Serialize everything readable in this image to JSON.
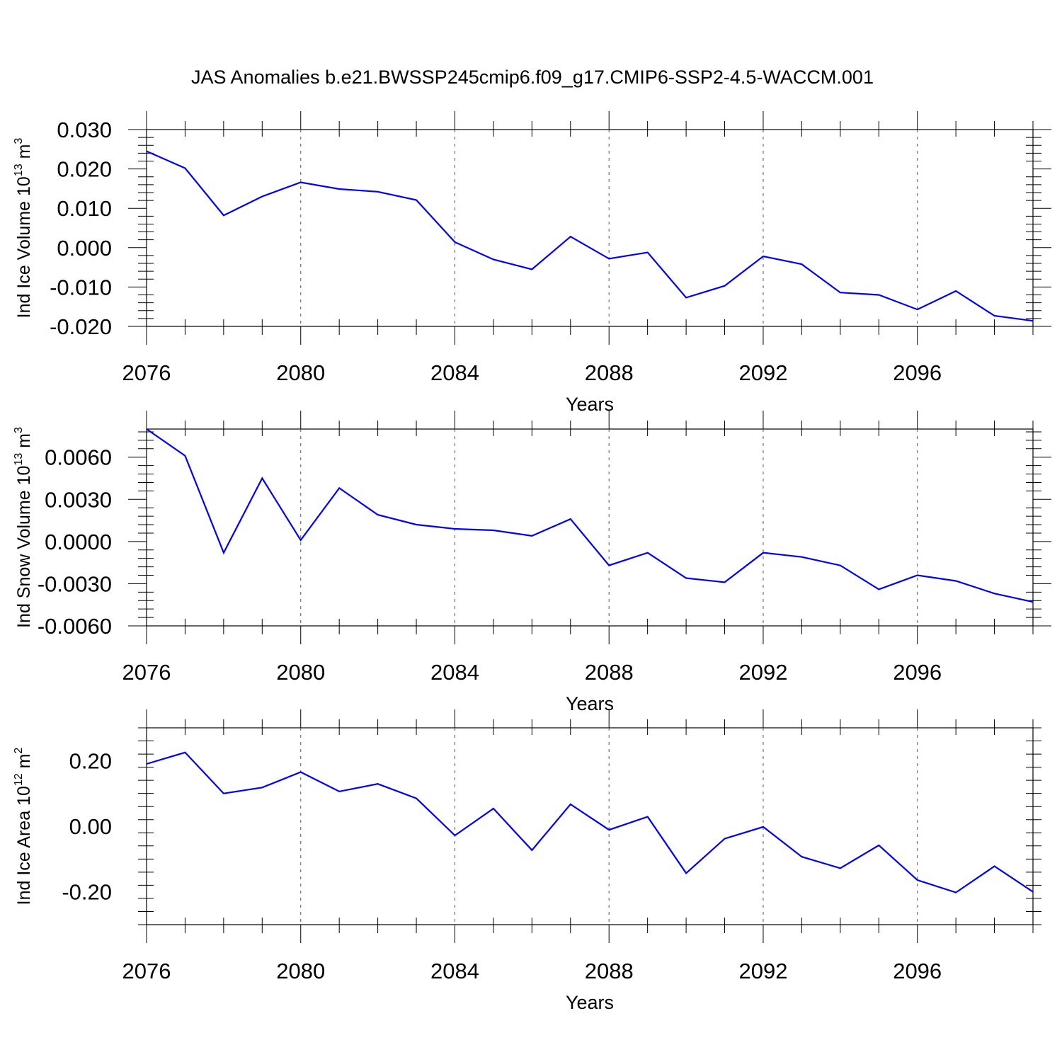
{
  "title": "JAS Anomalies b.e21.BWSSP245cmip6.f09_g17.CMIP6-SSP2-4.5-WACCM.001",
  "line_color": "#0000ff",
  "chart_data": [
    {
      "type": "line",
      "ylabel": {
        "text": "Ind Ice Volume 10",
        "sup": "13",
        "unit": " m",
        "unit_sup": "3"
      },
      "xlabel": "Years",
      "xlim": [
        2076,
        2099
      ],
      "ylim": [
        -0.02,
        0.03
      ],
      "xticks": [
        2076,
        2080,
        2084,
        2088,
        2092,
        2096
      ],
      "yticks": [
        0.03,
        0.02,
        0.01,
        0.0,
        -0.01,
        -0.02
      ],
      "ytick_labels": [
        "0.030",
        "0.020",
        "0.010",
        "0.000",
        "-0.010",
        "-0.020"
      ],
      "x": [
        2076,
        2077,
        2078,
        2079,
        2080,
        2081,
        2082,
        2083,
        2084,
        2085,
        2086,
        2087,
        2088,
        2089,
        2090,
        2091,
        2092,
        2093,
        2094,
        2095,
        2096,
        2097,
        2098,
        2099
      ],
      "values": [
        0.0245,
        0.0202,
        0.0082,
        0.013,
        0.0166,
        0.0149,
        0.0142,
        0.0121,
        0.0014,
        -0.003,
        -0.0055,
        0.0028,
        -0.0028,
        -0.0012,
        -0.0127,
        -0.0097,
        -0.0022,
        -0.0042,
        -0.0114,
        -0.012,
        -0.0157,
        -0.011,
        -0.0173,
        -0.0186
      ],
      "grid": "dashed vertical at major x ticks"
    },
    {
      "type": "line",
      "ylabel": {
        "text": "Ind Snow Volume 10",
        "sup": "13",
        "unit": " m",
        "unit_sup": "3"
      },
      "xlabel": "Years",
      "xlim": [
        2076,
        2099
      ],
      "ylim": [
        -0.006,
        0.008
      ],
      "xticks": [
        2076,
        2080,
        2084,
        2088,
        2092,
        2096
      ],
      "yticks": [
        0.006,
        0.003,
        0.0,
        -0.003,
        -0.006
      ],
      "ytick_labels": [
        "0.0060",
        "0.0030",
        "0.0000",
        "-0.0030",
        "-0.0060"
      ],
      "x": [
        2076,
        2077,
        2078,
        2079,
        2080,
        2081,
        2082,
        2083,
        2084,
        2085,
        2086,
        2087,
        2088,
        2089,
        2090,
        2091,
        2092,
        2093,
        2094,
        2095,
        2096,
        2097,
        2098,
        2099
      ],
      "values": [
        0.008,
        0.0061,
        -0.0008,
        0.0045,
        0.0001,
        0.0038,
        0.0019,
        0.0012,
        0.0009,
        0.0008,
        0.0004,
        0.0016,
        -0.0017,
        -0.0008,
        -0.0026,
        -0.0029,
        -0.0008,
        -0.0011,
        -0.0017,
        -0.0034,
        -0.0024,
        -0.0028,
        -0.0037,
        -0.0043
      ],
      "grid": "dashed vertical at major x ticks"
    },
    {
      "type": "line",
      "ylabel": {
        "text": "Ind Ice Area 10",
        "sup": "12",
        "unit": " m",
        "unit_sup": "2"
      },
      "xlabel": "Years",
      "xlim": [
        2076,
        2099
      ],
      "ylim": [
        -0.3,
        0.3
      ],
      "xticks": [
        2076,
        2080,
        2084,
        2088,
        2092,
        2096
      ],
      "yticks": [
        0.2,
        0.0,
        -0.2
      ],
      "ytick_labels": [
        "0.20",
        "0.00",
        "-0.20"
      ],
      "x": [
        2076,
        2077,
        2078,
        2079,
        2080,
        2081,
        2082,
        2083,
        2084,
        2085,
        2086,
        2087,
        2088,
        2089,
        2090,
        2091,
        2092,
        2093,
        2094,
        2095,
        2096,
        2097,
        2098,
        2099
      ],
      "values": [
        0.19,
        0.225,
        0.1,
        0.118,
        0.165,
        0.106,
        0.129,
        0.085,
        -0.028,
        0.054,
        -0.073,
        0.067,
        -0.011,
        0.029,
        -0.143,
        -0.038,
        -0.002,
        -0.093,
        -0.128,
        -0.058,
        -0.164,
        -0.202,
        -0.122,
        -0.2
      ],
      "grid": "dashed vertical at major x ticks"
    }
  ]
}
